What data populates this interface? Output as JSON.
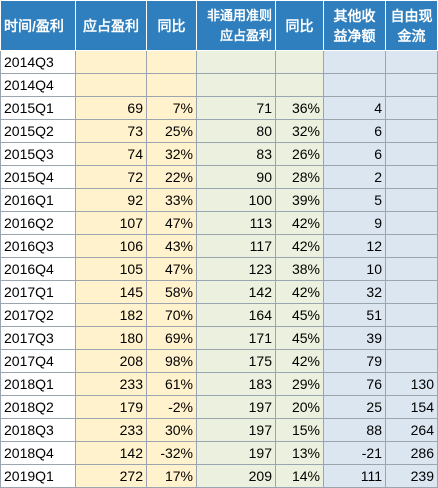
{
  "headers": {
    "period": "时间/盈利",
    "reported_profit": "应占盈利",
    "yoy1": "同比",
    "non_gaap_profit": "非通用准则应占盈利",
    "yoy2": "同比",
    "other_income": "其他收益净额",
    "free_cash_flow": "自由现金流"
  },
  "colors": {
    "header_bg": "#2f7fbe",
    "yellow_col": "#fff2cc",
    "green_col": "#ebf1de",
    "blue_col": "#dce6f1",
    "highlight_green": "#2fa52f",
    "highlight_red": "#e3283d"
  },
  "rows": [
    {
      "period": "2014Q3",
      "profit": "",
      "yoy1": "",
      "nongaap": "",
      "yoy2": "",
      "other": "",
      "fcf": ""
    },
    {
      "period": "2014Q4",
      "profit": "",
      "yoy1": "",
      "nongaap": "",
      "yoy2": "",
      "other": "",
      "fcf": ""
    },
    {
      "period": "2015Q1",
      "profit": "69",
      "yoy1": "7%",
      "nongaap": "71",
      "yoy2": "36%",
      "other": "4",
      "fcf": ""
    },
    {
      "period": "2015Q2",
      "profit": "73",
      "yoy1": "25%",
      "nongaap": "80",
      "yoy2": "32%",
      "other": "6",
      "fcf": ""
    },
    {
      "period": "2015Q3",
      "profit": "74",
      "yoy1": "32%",
      "nongaap": "83",
      "yoy2": "26%",
      "other": "6",
      "fcf": ""
    },
    {
      "period": "2015Q4",
      "profit": "72",
      "yoy1": "22%",
      "nongaap": "90",
      "yoy2": "28%",
      "other": "2",
      "fcf": ""
    },
    {
      "period": "2016Q1",
      "profit": "92",
      "yoy1": "33%",
      "nongaap": "100",
      "yoy2": "39%",
      "other": "5",
      "fcf": ""
    },
    {
      "period": "2016Q2",
      "profit": "107",
      "yoy1": "47%",
      "nongaap": "113",
      "yoy2": "42%",
      "other": "9",
      "fcf": ""
    },
    {
      "period": "2016Q3",
      "profit": "106",
      "yoy1": "43%",
      "nongaap": "117",
      "yoy2": "42%",
      "other": "12",
      "fcf": ""
    },
    {
      "period": "2016Q4",
      "profit": "105",
      "yoy1": "47%",
      "nongaap": "123",
      "yoy2": "38%",
      "other": "10",
      "fcf": ""
    },
    {
      "period": "2017Q1",
      "profit": "145",
      "yoy1": "58%",
      "nongaap": "142",
      "yoy2": "42%",
      "other": "32",
      "fcf": ""
    },
    {
      "period": "2017Q2",
      "profit": "182",
      "yoy1": "70%",
      "nongaap": "164",
      "yoy2": "45%",
      "other": "51",
      "fcf": ""
    },
    {
      "period": "2017Q3",
      "profit": "180",
      "yoy1": "69%",
      "nongaap": "171",
      "yoy2": "45%",
      "other": "39",
      "fcf": ""
    },
    {
      "period": "2017Q4",
      "profit": "208",
      "yoy1": "98%",
      "nongaap": "175",
      "yoy2": "42%",
      "other": "79",
      "fcf": "",
      "other_color": "red"
    },
    {
      "period": "2018Q1",
      "profit": "233",
      "yoy1": "61%",
      "nongaap": "183",
      "yoy2": "29%",
      "other": "76",
      "fcf": "130"
    },
    {
      "period": "2018Q2",
      "profit": "179",
      "yoy1": "-2%",
      "nongaap": "197",
      "yoy2": "20%",
      "other": "25",
      "fcf": "154",
      "yoy1_color": "green"
    },
    {
      "period": "2018Q3",
      "profit": "233",
      "yoy1": "30%",
      "nongaap": "197",
      "yoy2": "15%",
      "other": "88",
      "fcf": "264",
      "yoy2_color": "green"
    },
    {
      "period": "2018Q4",
      "profit": "142",
      "yoy1": "-32%",
      "nongaap": "197",
      "yoy2": "13%",
      "other": "-21",
      "fcf": "286",
      "yoy1_color": "green",
      "yoy2_color": "green",
      "other_color": "green"
    },
    {
      "period": "2019Q1",
      "profit": "272",
      "yoy1": "17%",
      "nongaap": "209",
      "yoy2": "14%",
      "other": "111",
      "fcf": "239",
      "yoy1_color": "green",
      "yoy2_color": "green",
      "other_color": "red"
    }
  ]
}
